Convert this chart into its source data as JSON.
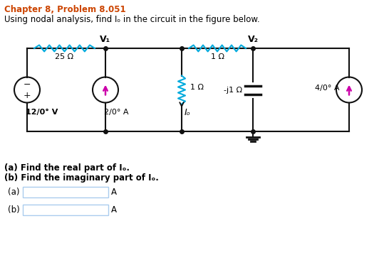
{
  "title_line1": "Chapter 8, Problem 8.051",
  "title_line2": "Using nodal analysis, find Iₒ in the circuit in the figure below.",
  "title_color": "#cc4400",
  "body_color": "#000000",
  "bg_color": "#ffffff",
  "question_a": "(a) Find the real part of Iₒ.",
  "question_b": "(b) Find the imaginary part of Iₒ.",
  "label_a": "(a)",
  "label_b": "(b)",
  "unit": "A",
  "V1_label": "V₁",
  "V2_label": "V₂",
  "R1_label": "25 Ω",
  "R2_label": "1 Ω",
  "R3_label": "1 Ω",
  "R4_label": "-j1 Ω",
  "VS_label": "12/0° V",
  "CS1_label": "2/0° A",
  "CS2_label": "4/0° A",
  "Io_label": "Iₒ",
  "wire_color": "#111111",
  "resistor_color": "#00aadd",
  "arrow_color": "#cc00aa",
  "box_color": "#aaccee"
}
